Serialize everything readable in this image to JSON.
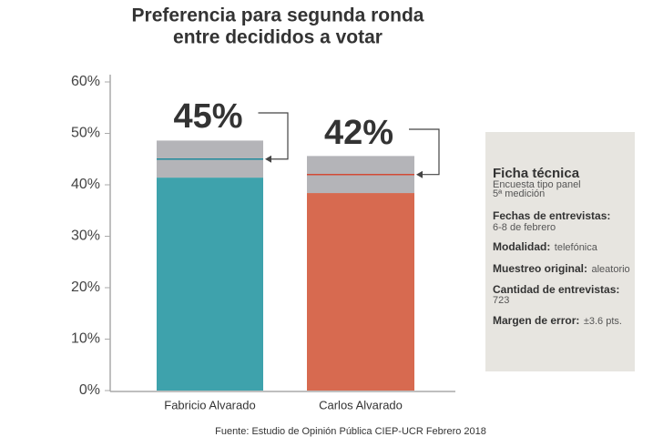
{
  "chart_data": {
    "type": "bar",
    "title": [
      "Preferencia para segunda ronda",
      "entre decididos a votar"
    ],
    "categories": [
      "Fabricio Alvarado",
      "Carlos Alvarado"
    ],
    "values": [
      45,
      42
    ],
    "value_labels": [
      "45%",
      "42%"
    ],
    "errors": [
      3.6,
      3.6
    ],
    "colors": [
      "#3ea2ac",
      "#d76a50"
    ],
    "line_colors": [
      "#1f8a9c",
      "#d24a36"
    ],
    "error_color": "#b4b4b8",
    "ylim": [
      0,
      60
    ],
    "yticks": [
      {
        "value": 0,
        "label": "0%"
      },
      {
        "value": 10,
        "label": "10%"
      },
      {
        "value": 20,
        "label": "20%"
      },
      {
        "value": 30,
        "label": "30%"
      },
      {
        "value": 40,
        "label": "40%"
      },
      {
        "value": 50,
        "label": "50%"
      },
      {
        "value": 60,
        "label": "60%"
      }
    ],
    "source": "Fuente: Estudio de Opinión Pública CIEP-UCR Febrero 2018"
  },
  "ficha": {
    "title": "Ficha técnica",
    "lines": [
      "Encuesta tipo panel",
      "5ª medición"
    ],
    "items": [
      {
        "label": "Fechas de entrevistas:",
        "value": "6-8 de febrero"
      },
      {
        "label": "Modalidad:",
        "value": "telefónica"
      },
      {
        "label": "Muestreo original:",
        "value": "aleatorio"
      },
      {
        "label": "Cantidad de entrevistas:",
        "value": "723"
      },
      {
        "label": "Margen de error:",
        "value": "±3.6 pts."
      }
    ]
  }
}
